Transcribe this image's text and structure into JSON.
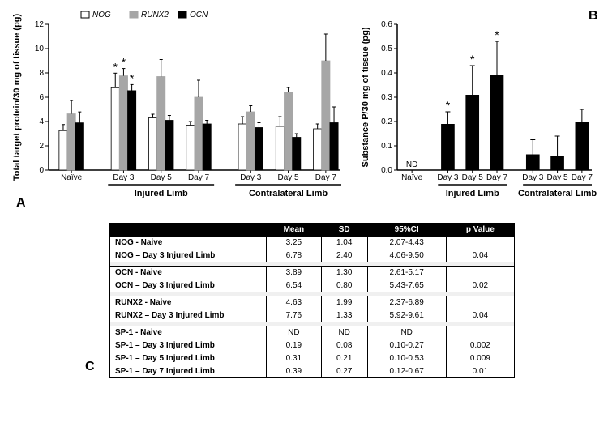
{
  "panelA": {
    "type": "bar",
    "yLabel": "Total target protein/30 mg of tissue (pg)",
    "ylim": [
      0,
      12
    ],
    "ytick_step": 2,
    "series": [
      {
        "name": "NOG",
        "color": "#ffffff",
        "border": "#000000"
      },
      {
        "name": "RUNX2",
        "color": "#a6a6a6",
        "border": "#a6a6a6"
      },
      {
        "name": "OCN",
        "color": "#000000",
        "border": "#000000"
      }
    ],
    "groups": [
      {
        "title": "",
        "cats": [
          {
            "label": "Naïve",
            "values": [
              3.25,
              4.63,
              3.89
            ],
            "errs": [
              0.5,
              1.1,
              0.9
            ],
            "stars": [
              false,
              false,
              false
            ]
          }
        ]
      },
      {
        "title": "Injured Limb",
        "cats": [
          {
            "label": "Day 3",
            "values": [
              6.78,
              7.76,
              6.54
            ],
            "errs": [
              1.2,
              0.6,
              0.5
            ],
            "stars": [
              true,
              true,
              true
            ]
          },
          {
            "label": "Day 5",
            "values": [
              4.3,
              7.7,
              4.1
            ],
            "errs": [
              0.3,
              1.4,
              0.4
            ],
            "stars": [
              false,
              false,
              false
            ]
          },
          {
            "label": "Day 7",
            "values": [
              3.7,
              6.0,
              3.8
            ],
            "errs": [
              0.3,
              1.4,
              0.3
            ],
            "stars": [
              false,
              false,
              false
            ]
          }
        ]
      },
      {
        "title": "Contralateral Limb",
        "cats": [
          {
            "label": "Day 3",
            "values": [
              3.8,
              4.8,
              3.5
            ],
            "errs": [
              0.6,
              0.5,
              0.4
            ],
            "stars": [
              false,
              false,
              false
            ]
          },
          {
            "label": "Day 5",
            "values": [
              3.6,
              6.4,
              2.7
            ],
            "errs": [
              0.8,
              0.4,
              0.3
            ],
            "stars": [
              false,
              false,
              false
            ]
          },
          {
            "label": "Day 7",
            "values": [
              3.4,
              9.0,
              3.9
            ],
            "errs": [
              0.4,
              2.2,
              1.3
            ],
            "stars": [
              false,
              false,
              false
            ]
          }
        ]
      }
    ],
    "panelLetter": "A"
  },
  "panelB": {
    "type": "bar",
    "yLabel": "Substance P/30 mg of tissue (pg)",
    "ylim": [
      0,
      0.6
    ],
    "ytick_step": 0.1,
    "bar_color": "#000000",
    "groups": [
      {
        "title": "",
        "cats": [
          {
            "label": "Naïve",
            "value": null,
            "err": null,
            "star": false,
            "nd": true
          }
        ]
      },
      {
        "title": "Injured Limb",
        "cats": [
          {
            "label": "Day 3",
            "value": 0.19,
            "err": 0.05,
            "star": true
          },
          {
            "label": "Day 5",
            "value": 0.31,
            "err": 0.12,
            "star": true
          },
          {
            "label": "Day 7",
            "value": 0.39,
            "err": 0.14,
            "star": true
          }
        ]
      },
      {
        "title": "Contralateral Limb",
        "cats": [
          {
            "label": "Day 3",
            "value": 0.065,
            "err": 0.06,
            "star": false
          },
          {
            "label": "Day 5",
            "value": 0.06,
            "err": 0.08,
            "star": false
          },
          {
            "label": "Day 7",
            "value": 0.2,
            "err": 0.05,
            "star": false
          }
        ]
      }
    ],
    "panelLetter": "B",
    "ndText": "ND"
  },
  "tableC": {
    "headers": [
      "",
      "Mean",
      "SD",
      "95%CI",
      "p Value"
    ],
    "sections": [
      [
        [
          "NOG - Naive",
          "3.25",
          "1.04",
          "2.07-4.43",
          ""
        ],
        [
          "NOG – Day 3 Injured Limb",
          "6.78",
          "2.40",
          "4.06-9.50",
          "0.04"
        ]
      ],
      [
        [
          "OCN - Naive",
          "3.89",
          "1.30",
          "2.61-5.17",
          ""
        ],
        [
          "OCN – Day 3 Injured Limb",
          "6.54",
          "0.80",
          "5.43-7.65",
          "0.02"
        ]
      ],
      [
        [
          "RUNX2 - Naive",
          "4.63",
          "1.99",
          "2.37-6.89",
          ""
        ],
        [
          "RUNX2 – Day 3 Injured Limb",
          "7.76",
          "1.33",
          "5.92-9.61",
          "0.04"
        ]
      ],
      [
        [
          "SP-1 - Naive",
          "ND",
          "ND",
          "ND",
          ""
        ],
        [
          "SP-1 – Day 3 Injured Limb",
          "0.19",
          "0.08",
          "0.10-0.27",
          "0.002"
        ],
        [
          "SP-1 – Day 5 Injured Limb",
          "0.31",
          "0.21",
          "0.10-0.53",
          "0.009"
        ],
        [
          "SP-1 – Day 7 Injured Limb",
          "0.39",
          "0.27",
          "0.12-0.67",
          "0.01"
        ]
      ]
    ],
    "panelLetter": "C"
  }
}
